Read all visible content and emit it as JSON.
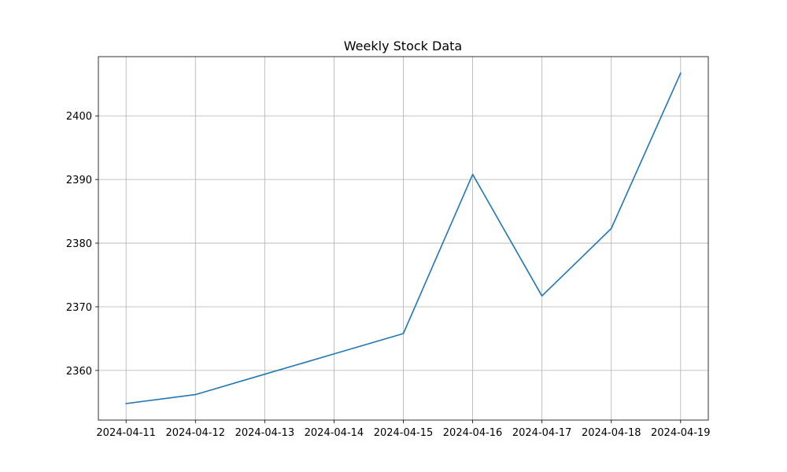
{
  "chart_data": {
    "type": "line",
    "title": "Weekly Stock Data",
    "xlabel": "",
    "ylabel": "",
    "x": [
      "2024-04-11",
      "2024-04-12",
      "2024-04-13",
      "2024-04-14",
      "2024-04-15",
      "2024-04-16",
      "2024-04-17",
      "2024-04-18",
      "2024-04-19"
    ],
    "series": [
      {
        "values": [
          2354.8,
          2356.2,
          2359.4,
          2362.6,
          2365.8,
          2390.8,
          2371.7,
          2382.3,
          2406.7
        ],
        "color": "#1f77b4"
      }
    ],
    "ylim": [
      2352.2,
      2409.3
    ],
    "yticks": [
      2360,
      2370,
      2380,
      2390,
      2400
    ],
    "grid": true,
    "legend": "none"
  }
}
